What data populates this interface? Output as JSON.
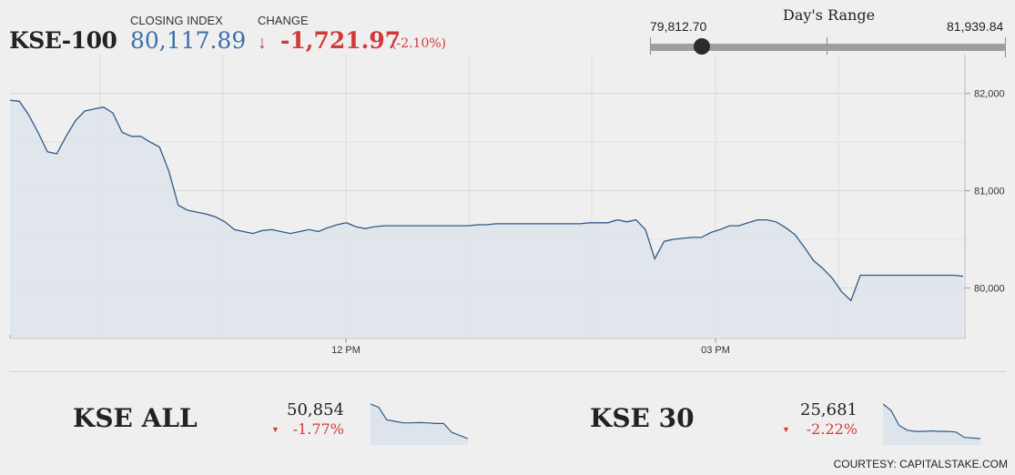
{
  "header": {
    "ticker": "KSE-100",
    "closing_label": "CLOSING INDEX",
    "closing_value": "80,117.89",
    "change_label": "CHANGE",
    "change_arrow": "↓",
    "change_value": "-1,721.97",
    "change_pct": "(-2.10%)"
  },
  "days_range": {
    "title": "Day's Range",
    "low": "79,812.70",
    "high": "81,939.84",
    "current_fraction": 0.145
  },
  "chart_data": {
    "type": "area",
    "xlabel": "",
    "ylabel": "",
    "x_ticks": [
      "12 PM",
      "03 PM"
    ],
    "y_ticks": [
      "82,000",
      "81,000",
      "80,000"
    ],
    "y_tick_values": [
      82000,
      81000,
      80000
    ],
    "ylim": [
      79480,
      82400
    ],
    "grid": true,
    "series": [
      {
        "values": [
          81930,
          81920,
          81780,
          81600,
          81400,
          81380,
          81560,
          81720,
          81820,
          81840,
          81860,
          81800,
          81600,
          81560,
          81560,
          81500,
          81450,
          81200,
          80850,
          80800,
          80780,
          80760,
          80730,
          80680,
          80600,
          80580,
          80560,
          80590,
          80600,
          80580,
          80560,
          80580,
          80600,
          80580,
          80620,
          80650,
          80670,
          80630,
          80610,
          80630,
          80640,
          80640,
          80640,
          80640,
          80640,
          80640,
          80640,
          80640,
          80640,
          80640,
          80650,
          80650,
          80660,
          80660,
          80660,
          80660,
          80660,
          80660,
          80660,
          80660,
          80660,
          80660,
          80670,
          80670,
          80670,
          80700,
          80680,
          80700,
          80600,
          80300,
          80480,
          80500,
          80510,
          80520,
          80520,
          80570,
          80600,
          80640,
          80640,
          80670,
          80700,
          80700,
          80680,
          80620,
          80550,
          80420,
          80280,
          80200,
          80100,
          79960,
          79870,
          80130,
          80130,
          80130,
          80130,
          80130,
          80130,
          80130,
          80130,
          80130,
          80130,
          80130,
          80120
        ]
      }
    ]
  },
  "sub_indices": [
    {
      "name": "KSE ALL",
      "value": "50,854",
      "arrow": "▼",
      "pct": "-1.77%",
      "spark": [
        51800,
        51700,
        51300,
        51250,
        51200,
        51200,
        51210,
        51200,
        51180,
        51180,
        50900,
        50800,
        50700
      ]
    },
    {
      "name": "KSE 30",
      "value": "25,681",
      "arrow": "▼",
      "pct": "-2.22%",
      "spark": [
        26260,
        26150,
        25900,
        25820,
        25800,
        25800,
        25810,
        25800,
        25800,
        25790,
        25700,
        25690,
        25680
      ]
    }
  ],
  "footer": {
    "credit": "COURTESY: CAPITALSTAKE.COM"
  },
  "colors": {
    "line": "#2f5a8a",
    "fill": "#dde4ec",
    "accent_blue": "#3d6fa8",
    "negative": "#d23a3a"
  }
}
